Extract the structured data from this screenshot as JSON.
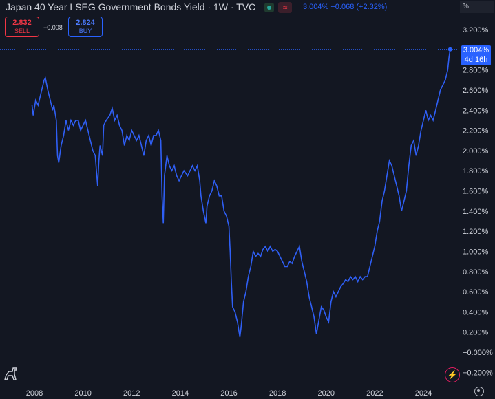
{
  "header": {
    "title": "Japan 40 Year LSEG Government Bonds Yield · 1W · TVC",
    "last_value": "3.004%",
    "change": "+0.068",
    "change_pct": "(+2.32%)",
    "scale_label": "%"
  },
  "trade": {
    "sell_price": "2.832",
    "sell_label": "SELL",
    "spread": "−0.008",
    "buy_price": "2.824",
    "buy_label": "BUY"
  },
  "last_tag": {
    "value": "3.004%",
    "countdown": "4d 16h"
  },
  "icons": {
    "flash": "lightning-icon",
    "settings": "gear-icon",
    "logo": "dino-icon"
  },
  "colors": {
    "background": "#131722",
    "line": "#2962ff",
    "grid": "#1e222d",
    "sell": "#f23645",
    "buy": "#2962ff"
  },
  "chart_data": {
    "type": "line",
    "title": "Japan 40 Year LSEG Government Bonds Yield · 1W · TVC",
    "xlabel": "",
    "ylabel": "",
    "xlim": [
      2007.5,
      2025.3
    ],
    "ylim": [
      -0.25,
      3.3
    ],
    "x_ticks": [
      "2008",
      "2010",
      "2012",
      "2014",
      "2016",
      "2018",
      "2020",
      "2022",
      "2024"
    ],
    "y_ticks": [
      "3.200%",
      "3.000%",
      "2.800%",
      "2.600%",
      "2.400%",
      "2.200%",
      "2.000%",
      "1.800%",
      "1.600%",
      "1.400%",
      "1.200%",
      "1.000%",
      "0.800%",
      "0.600%",
      "0.400%",
      "0.200%",
      "−0.000%",
      "−0.200%"
    ],
    "y_tick_values": [
      3.2,
      3.0,
      2.8,
      2.6,
      2.4,
      2.2,
      2.0,
      1.8,
      1.6,
      1.4,
      1.2,
      1.0,
      0.8,
      0.6,
      0.4,
      0.2,
      0.0,
      -0.2
    ],
    "grid": false,
    "series": [
      {
        "points": [
          [
            2007.9,
            2.45
          ],
          [
            2007.95,
            2.35
          ],
          [
            2008.05,
            2.5
          ],
          [
            2008.15,
            2.45
          ],
          [
            2008.3,
            2.6
          ],
          [
            2008.4,
            2.7
          ],
          [
            2008.45,
            2.72
          ],
          [
            2008.55,
            2.6
          ],
          [
            2008.65,
            2.5
          ],
          [
            2008.75,
            2.4
          ],
          [
            2008.8,
            2.45
          ],
          [
            2008.9,
            2.3
          ],
          [
            2008.95,
            1.95
          ],
          [
            2009.0,
            1.88
          ],
          [
            2009.1,
            2.05
          ],
          [
            2009.2,
            2.15
          ],
          [
            2009.3,
            2.3
          ],
          [
            2009.4,
            2.2
          ],
          [
            2009.5,
            2.3
          ],
          [
            2009.6,
            2.25
          ],
          [
            2009.7,
            2.3
          ],
          [
            2009.8,
            2.3
          ],
          [
            2009.9,
            2.2
          ],
          [
            2010.0,
            2.25
          ],
          [
            2010.1,
            2.3
          ],
          [
            2010.2,
            2.2
          ],
          [
            2010.3,
            2.1
          ],
          [
            2010.4,
            2.0
          ],
          [
            2010.5,
            1.95
          ],
          [
            2010.6,
            1.65
          ],
          [
            2010.65,
            1.9
          ],
          [
            2010.7,
            2.05
          ],
          [
            2010.8,
            1.95
          ],
          [
            2010.85,
            2.25
          ],
          [
            2010.95,
            2.3
          ],
          [
            2011.1,
            2.35
          ],
          [
            2011.2,
            2.42
          ],
          [
            2011.3,
            2.3
          ],
          [
            2011.4,
            2.35
          ],
          [
            2011.5,
            2.25
          ],
          [
            2011.6,
            2.2
          ],
          [
            2011.7,
            2.05
          ],
          [
            2011.8,
            2.15
          ],
          [
            2011.9,
            2.1
          ],
          [
            2012.0,
            2.2
          ],
          [
            2012.1,
            2.15
          ],
          [
            2012.2,
            2.1
          ],
          [
            2012.3,
            2.15
          ],
          [
            2012.4,
            2.05
          ],
          [
            2012.5,
            1.95
          ],
          [
            2012.6,
            2.1
          ],
          [
            2012.7,
            2.15
          ],
          [
            2012.8,
            2.05
          ],
          [
            2012.9,
            2.15
          ],
          [
            2013.0,
            2.15
          ],
          [
            2013.1,
            2.2
          ],
          [
            2013.2,
            2.1
          ],
          [
            2013.25,
            1.55
          ],
          [
            2013.3,
            1.28
          ],
          [
            2013.35,
            1.75
          ],
          [
            2013.45,
            1.95
          ],
          [
            2013.55,
            1.85
          ],
          [
            2013.65,
            1.8
          ],
          [
            2013.75,
            1.85
          ],
          [
            2013.85,
            1.75
          ],
          [
            2013.95,
            1.7
          ],
          [
            2014.05,
            1.75
          ],
          [
            2014.15,
            1.8
          ],
          [
            2014.3,
            1.75
          ],
          [
            2014.4,
            1.8
          ],
          [
            2014.5,
            1.85
          ],
          [
            2014.6,
            1.8
          ],
          [
            2014.7,
            1.85
          ],
          [
            2014.8,
            1.7
          ],
          [
            2014.85,
            1.55
          ],
          [
            2014.95,
            1.4
          ],
          [
            2015.05,
            1.28
          ],
          [
            2015.1,
            1.45
          ],
          [
            2015.2,
            1.55
          ],
          [
            2015.3,
            1.6
          ],
          [
            2015.4,
            1.7
          ],
          [
            2015.5,
            1.65
          ],
          [
            2015.6,
            1.55
          ],
          [
            2015.7,
            1.55
          ],
          [
            2015.8,
            1.4
          ],
          [
            2015.9,
            1.35
          ],
          [
            2016.0,
            1.25
          ],
          [
            2016.05,
            1.0
          ],
          [
            2016.1,
            0.7
          ],
          [
            2016.15,
            0.45
          ],
          [
            2016.25,
            0.4
          ],
          [
            2016.35,
            0.3
          ],
          [
            2016.45,
            0.15
          ],
          [
            2016.5,
            0.25
          ],
          [
            2016.6,
            0.5
          ],
          [
            2016.7,
            0.6
          ],
          [
            2016.8,
            0.75
          ],
          [
            2016.9,
            0.85
          ],
          [
            2017.0,
            1.0
          ],
          [
            2017.1,
            0.95
          ],
          [
            2017.2,
            0.98
          ],
          [
            2017.3,
            0.95
          ],
          [
            2017.4,
            1.02
          ],
          [
            2017.5,
            1.05
          ],
          [
            2017.6,
            1.0
          ],
          [
            2017.7,
            1.05
          ],
          [
            2017.8,
            1.0
          ],
          [
            2017.9,
            1.02
          ],
          [
            2018.0,
            1.0
          ],
          [
            2018.1,
            0.95
          ],
          [
            2018.2,
            0.9
          ],
          [
            2018.3,
            0.85
          ],
          [
            2018.4,
            0.85
          ],
          [
            2018.5,
            0.9
          ],
          [
            2018.6,
            0.88
          ],
          [
            2018.7,
            0.95
          ],
          [
            2018.8,
            1.0
          ],
          [
            2018.9,
            1.05
          ],
          [
            2019.0,
            0.9
          ],
          [
            2019.1,
            0.8
          ],
          [
            2019.2,
            0.7
          ],
          [
            2019.3,
            0.55
          ],
          [
            2019.4,
            0.45
          ],
          [
            2019.5,
            0.35
          ],
          [
            2019.6,
            0.18
          ],
          [
            2019.7,
            0.32
          ],
          [
            2019.8,
            0.45
          ],
          [
            2019.9,
            0.42
          ],
          [
            2020.0,
            0.35
          ],
          [
            2020.1,
            0.3
          ],
          [
            2020.2,
            0.5
          ],
          [
            2020.3,
            0.6
          ],
          [
            2020.4,
            0.55
          ],
          [
            2020.5,
            0.6
          ],
          [
            2020.6,
            0.65
          ],
          [
            2020.7,
            0.68
          ],
          [
            2020.8,
            0.72
          ],
          [
            2020.9,
            0.7
          ],
          [
            2021.0,
            0.75
          ],
          [
            2021.1,
            0.72
          ],
          [
            2021.2,
            0.75
          ],
          [
            2021.3,
            0.7
          ],
          [
            2021.4,
            0.75
          ],
          [
            2021.5,
            0.72
          ],
          [
            2021.6,
            0.75
          ],
          [
            2021.7,
            0.75
          ],
          [
            2021.8,
            0.85
          ],
          [
            2021.9,
            0.95
          ],
          [
            2022.0,
            1.05
          ],
          [
            2022.1,
            1.2
          ],
          [
            2022.2,
            1.3
          ],
          [
            2022.3,
            1.5
          ],
          [
            2022.4,
            1.6
          ],
          [
            2022.5,
            1.75
          ],
          [
            2022.6,
            1.9
          ],
          [
            2022.7,
            1.85
          ],
          [
            2022.8,
            1.75
          ],
          [
            2022.9,
            1.65
          ],
          [
            2023.0,
            1.55
          ],
          [
            2023.1,
            1.4
          ],
          [
            2023.2,
            1.5
          ],
          [
            2023.3,
            1.6
          ],
          [
            2023.4,
            1.85
          ],
          [
            2023.5,
            2.05
          ],
          [
            2023.6,
            2.1
          ],
          [
            2023.7,
            1.95
          ],
          [
            2023.8,
            2.05
          ],
          [
            2023.9,
            2.2
          ],
          [
            2024.0,
            2.3
          ],
          [
            2024.1,
            2.4
          ],
          [
            2024.2,
            2.3
          ],
          [
            2024.3,
            2.35
          ],
          [
            2024.4,
            2.3
          ],
          [
            2024.5,
            2.4
          ],
          [
            2024.6,
            2.5
          ],
          [
            2024.7,
            2.6
          ],
          [
            2024.8,
            2.65
          ],
          [
            2024.9,
            2.7
          ],
          [
            2025.0,
            2.8
          ],
          [
            2025.05,
            2.92
          ],
          [
            2025.1,
            3.004
          ]
        ]
      }
    ]
  }
}
